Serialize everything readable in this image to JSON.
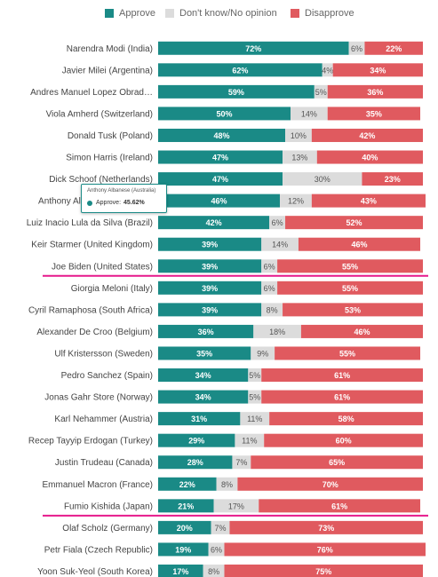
{
  "legend": [
    {
      "label": "Approve",
      "color": "#1a8a86"
    },
    {
      "label": "Don't know/No opinion",
      "color": "#dcdcdc"
    },
    {
      "label": "Disapprove",
      "color": "#e05a5f"
    }
  ],
  "colors": {
    "approve": "#1a8a86",
    "neutral": "#dcdcdc",
    "disapprove": "#e05a5f",
    "highlight_underline": "#e6198c"
  },
  "tooltip": {
    "title": "Anthony Albanese (Australia)",
    "series": "Approve:",
    "value": "45.62%"
  },
  "chart_data": {
    "type": "bar",
    "stacked": true,
    "orientation": "horizontal",
    "xlim": [
      0,
      100
    ],
    "categories": [
      "Narendra Modi (India)",
      "Javier Milei (Argentina)",
      "Andres Manuel Lopez Obrad…",
      "Viola Amherd (Switzerland)",
      "Donald Tusk (Poland)",
      "Simon Harris (Ireland)",
      "Dick Schoof (Netherlands)",
      "Anthony Albanese (Australia)",
      "Luiz Inacio Lula da Silva (Brazil)",
      "Keir Starmer (United Kingdom)",
      "Joe Biden (United States)",
      "Giorgia Meloni (Italy)",
      "Cyril Ramaphosa (South Africa)",
      "Alexander De Croo (Belgium)",
      "Ulf Kristersson (Sweden)",
      "Pedro Sanchez (Spain)",
      "Jonas Gahr Store (Norway)",
      "Karl Nehammer (Austria)",
      "Recep Tayyip Erdogan (Turkey)",
      "Justin Trudeau (Canada)",
      "Emmanuel Macron (France)",
      "Fumio Kishida (Japan)",
      "Olaf Scholz (Germany)",
      "Petr Fiala (Czech Republic)",
      "Yoon Suk-Yeol (South Korea)"
    ],
    "highlighted": [
      "Joe Biden (United States)",
      "Fumio Kishida (Japan)",
      "Yoon Suk-Yeol (South Korea)"
    ],
    "series": [
      {
        "name": "Approve",
        "values": [
          72,
          62,
          59,
          50,
          48,
          47,
          47,
          46,
          42,
          39,
          39,
          39,
          39,
          36,
          35,
          34,
          34,
          31,
          29,
          28,
          22,
          21,
          20,
          19,
          17
        ]
      },
      {
        "name": "Don't know/No opinion",
        "values": [
          6,
          4,
          5,
          14,
          10,
          13,
          30,
          12,
          6,
          14,
          6,
          6,
          8,
          18,
          9,
          5,
          5,
          11,
          11,
          7,
          8,
          17,
          7,
          6,
          8
        ]
      },
      {
        "name": "Disapprove",
        "values": [
          22,
          34,
          36,
          35,
          42,
          40,
          23,
          43,
          52,
          46,
          55,
          55,
          53,
          46,
          55,
          61,
          61,
          58,
          60,
          65,
          70,
          61,
          73,
          76,
          75
        ]
      }
    ]
  }
}
